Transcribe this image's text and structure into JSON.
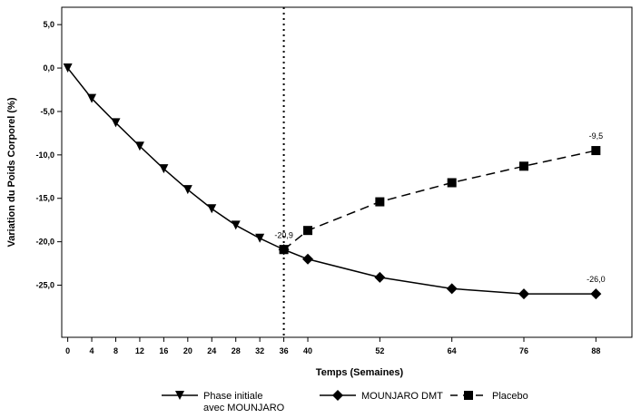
{
  "chart_data": {
    "type": "line",
    "xlabel": "Temps (Semaines)",
    "ylabel": "Variation du Poids Corporel (%)",
    "xlim": [
      -1,
      94
    ],
    "ylim": [
      -31,
      7
    ],
    "x_ticks": [
      0,
      4,
      8,
      12,
      16,
      20,
      24,
      28,
      32,
      36,
      40,
      52,
      64,
      76,
      88
    ],
    "y_ticks": [
      5,
      0,
      -5,
      -10,
      -15,
      -20,
      -25
    ],
    "y_tick_labels": [
      "5,0",
      "0,0",
      "-5,0",
      "-10,0",
      "-15,0",
      "-20,0",
      "-25,0"
    ],
    "vertical_reference_line_x": 36,
    "grid": false,
    "legend_position": "bottom",
    "series": [
      {
        "name": "Phase initiale\navec MOUNJARO",
        "marker": "triangle-down",
        "line_style": "solid",
        "x": [
          0,
          4,
          8,
          12,
          16,
          20,
          24,
          28,
          32,
          36
        ],
        "y": [
          0.0,
          -3.5,
          -6.3,
          -9.0,
          -11.6,
          -14.0,
          -16.2,
          -18.1,
          -19.6,
          -20.9
        ]
      },
      {
        "name": "MOUNJARO DMT",
        "marker": "diamond",
        "line_style": "solid",
        "x": [
          36,
          40,
          52,
          64,
          76,
          88
        ],
        "y": [
          -20.9,
          -22.0,
          -24.1,
          -25.4,
          -26.0,
          -26.0
        ]
      },
      {
        "name": "Placebo",
        "marker": "square",
        "line_style": "dashed",
        "x": [
          36,
          40,
          52,
          64,
          76,
          88
        ],
        "y": [
          -20.9,
          -18.7,
          -15.4,
          -13.2,
          -11.3,
          -9.5
        ]
      }
    ],
    "annotations": [
      {
        "text": "-20,9",
        "x": 36,
        "y": -20.9
      },
      {
        "text": "-9,5",
        "x": 88,
        "y": -9.5
      },
      {
        "text": "-26,0",
        "x": 88,
        "y": -26.0
      }
    ]
  }
}
